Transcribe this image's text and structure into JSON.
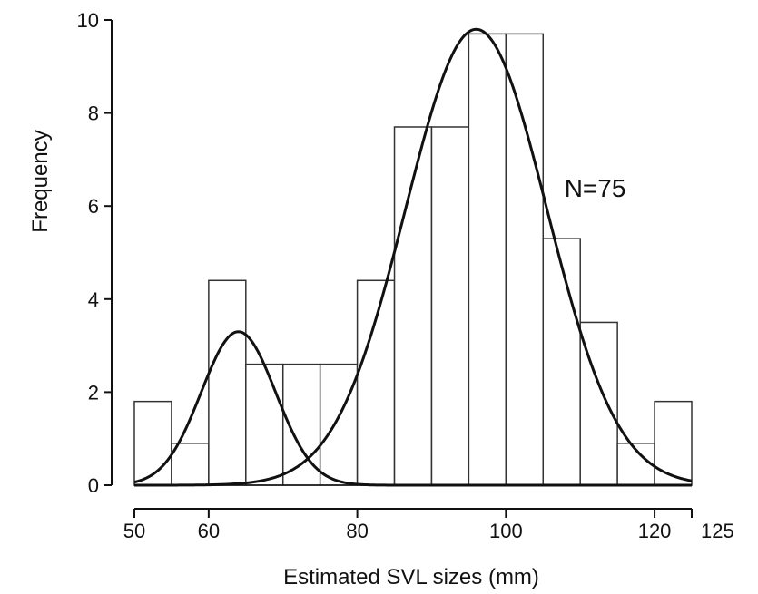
{
  "chart_data": {
    "type": "bar",
    "title": "",
    "xlabel": "Estimated SVL sizes (mm)",
    "ylabel": "Frequency",
    "xlim": [
      50,
      125
    ],
    "ylim": [
      0,
      10
    ],
    "x_ticks": [
      50,
      60,
      80,
      100,
      120,
      125
    ],
    "y_ticks": [
      0,
      2,
      4,
      6,
      8,
      10
    ],
    "bin_width": 5,
    "bins": [
      {
        "start": 50,
        "end": 55,
        "value": 1.8
      },
      {
        "start": 55,
        "end": 60,
        "value": 0.9
      },
      {
        "start": 60,
        "end": 65,
        "value": 4.4
      },
      {
        "start": 65,
        "end": 70,
        "value": 2.6
      },
      {
        "start": 70,
        "end": 75,
        "value": 2.6
      },
      {
        "start": 75,
        "end": 80,
        "value": 2.6
      },
      {
        "start": 80,
        "end": 85,
        "value": 4.4
      },
      {
        "start": 85,
        "end": 90,
        "value": 7.7
      },
      {
        "start": 90,
        "end": 95,
        "value": 7.7
      },
      {
        "start": 95,
        "end": 100,
        "value": 9.7
      },
      {
        "start": 100,
        "end": 105,
        "value": 9.7
      },
      {
        "start": 105,
        "end": 110,
        "value": 5.3
      },
      {
        "start": 110,
        "end": 115,
        "value": 3.5
      },
      {
        "start": 115,
        "end": 120,
        "value": 0.9
      },
      {
        "start": 120,
        "end": 125,
        "value": 1.8
      }
    ],
    "curves": [
      {
        "type": "normal",
        "mean": 64,
        "sd": 5,
        "peak": 3.3
      },
      {
        "type": "normal",
        "mean": 96,
        "sd": 9.5,
        "peak": 9.8
      }
    ],
    "annotations": [
      {
        "text": "N=75",
        "x": 112,
        "y": 6.2
      }
    ],
    "grid": false,
    "legend": false
  }
}
